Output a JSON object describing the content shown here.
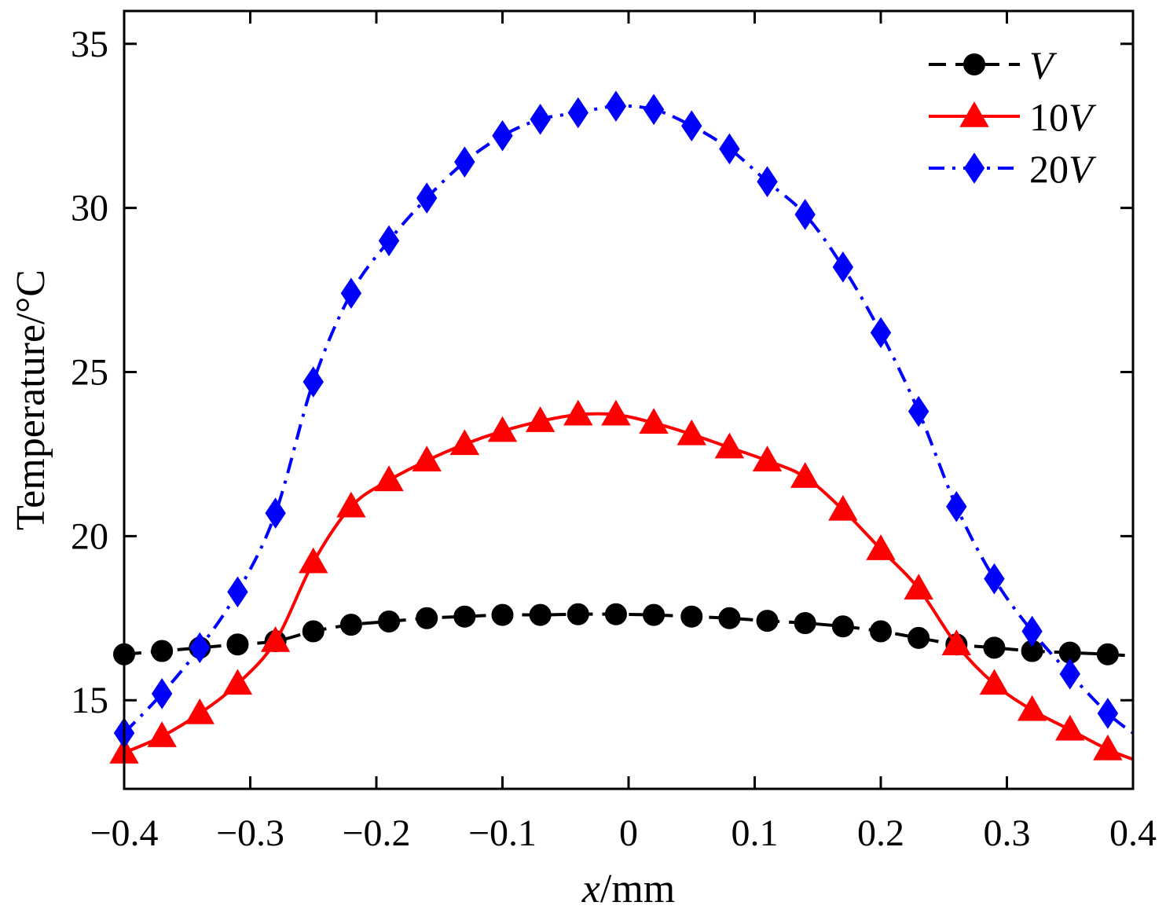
{
  "chart_data": {
    "type": "line",
    "title": "",
    "xlabel_italic": "x",
    "xlabel_rest": "/mm",
    "ylabel": "Temperature/°C",
    "xlim": [
      -0.4,
      0.4
    ],
    "ylim": [
      12.3,
      36.0
    ],
    "xticks": [
      -0.4,
      -0.3,
      -0.2,
      -0.1,
      0,
      0.1,
      0.2,
      0.3,
      0.4
    ],
    "xtick_labels": [
      "−0.4",
      "−0.3",
      "−0.2",
      "−0.1",
      "0",
      "0.1",
      "0.2",
      "0.3",
      "0.4"
    ],
    "yticks": [
      15,
      20,
      25,
      30,
      35
    ],
    "ytick_labels": [
      "15",
      "20",
      "25",
      "30",
      "35"
    ],
    "legend_position": "top-right",
    "series": [
      {
        "name": "V",
        "legend_prefix": "",
        "legend_italic": "V",
        "color": "#000000",
        "line_style": "dashed",
        "marker": "circle",
        "x": [
          -0.4,
          -0.37,
          -0.34,
          -0.31,
          -0.28,
          -0.25,
          -0.22,
          -0.19,
          -0.16,
          -0.13,
          -0.1,
          -0.07,
          -0.04,
          -0.01,
          0.02,
          0.05,
          0.08,
          0.11,
          0.14,
          0.17,
          0.2,
          0.23,
          0.26,
          0.29,
          0.32,
          0.35,
          0.38,
          0.4
        ],
        "y": [
          16.4,
          16.5,
          16.6,
          16.7,
          16.8,
          17.1,
          17.3,
          17.4,
          17.5,
          17.55,
          17.6,
          17.6,
          17.62,
          17.62,
          17.6,
          17.55,
          17.5,
          17.42,
          17.35,
          17.25,
          17.1,
          16.9,
          16.7,
          16.6,
          16.5,
          16.45,
          16.4,
          16.35
        ],
        "marker_count": 27
      },
      {
        "name": "10V",
        "legend_prefix": "10",
        "legend_italic": "V",
        "color": "#ff0000",
        "line_style": "solid",
        "marker": "triangle",
        "x": [
          -0.4,
          -0.37,
          -0.34,
          -0.31,
          -0.28,
          -0.25,
          -0.22,
          -0.19,
          -0.16,
          -0.13,
          -0.1,
          -0.07,
          -0.04,
          -0.01,
          0.02,
          0.05,
          0.08,
          0.11,
          0.14,
          0.17,
          0.2,
          0.23,
          0.26,
          0.29,
          0.32,
          0.35,
          0.38,
          0.4
        ],
        "y": [
          13.4,
          13.9,
          14.6,
          15.5,
          16.8,
          19.2,
          20.9,
          21.7,
          22.3,
          22.8,
          23.2,
          23.5,
          23.7,
          23.7,
          23.45,
          23.1,
          22.7,
          22.3,
          21.8,
          20.8,
          19.6,
          18.4,
          16.7,
          15.5,
          14.7,
          14.1,
          13.5,
          13.2
        ],
        "marker_count": 27
      },
      {
        "name": "20V",
        "legend_prefix": "20",
        "legend_italic": "V",
        "color": "#0000ff",
        "line_style": "dashdot",
        "marker": "diamond",
        "x": [
          -0.4,
          -0.37,
          -0.34,
          -0.31,
          -0.28,
          -0.25,
          -0.22,
          -0.19,
          -0.16,
          -0.13,
          -0.1,
          -0.07,
          -0.04,
          -0.01,
          0.02,
          0.05,
          0.08,
          0.11,
          0.14,
          0.17,
          0.2,
          0.23,
          0.26,
          0.29,
          0.32,
          0.35,
          0.38,
          0.4
        ],
        "y": [
          14.0,
          15.2,
          16.6,
          18.3,
          20.7,
          24.7,
          27.4,
          29.0,
          30.3,
          31.4,
          32.2,
          32.7,
          32.9,
          33.1,
          33.0,
          32.5,
          31.8,
          30.8,
          29.8,
          28.2,
          26.2,
          23.8,
          20.9,
          18.7,
          17.1,
          15.8,
          14.6,
          14.0
        ],
        "marker_count": 27
      }
    ]
  }
}
